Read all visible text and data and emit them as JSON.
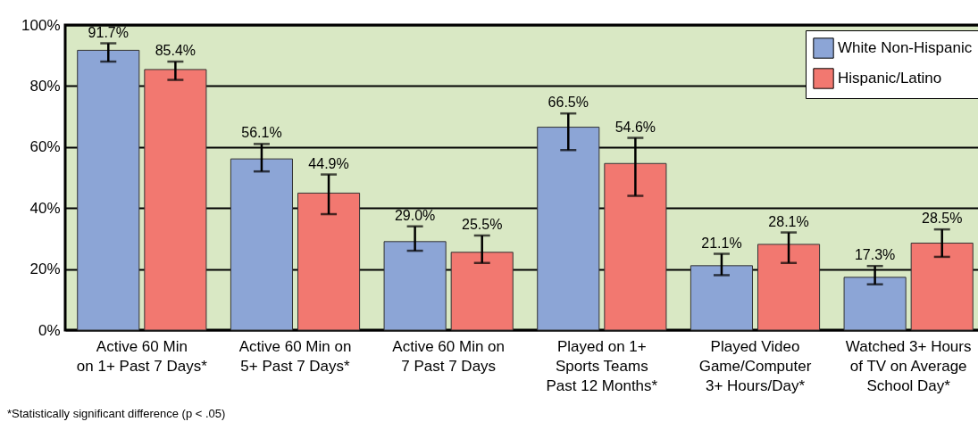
{
  "chart_data": {
    "type": "bar",
    "categories": [
      "Active 60 Min\non 1+ Past 7 Days*",
      "Active 60 Min on\n5+ Past 7 Days*",
      "Active 60 Min on\n7 Past 7 Days",
      "Played on 1+\nSports Teams\nPast 12 Months*",
      "Played Video\nGame/Computer\n3+  Hours/Day*",
      "Watched 3+ Hours\nof TV on Average\nSchool Day*"
    ],
    "series": [
      {
        "name": "White Non-Hispanic",
        "color": "#8ca5d6",
        "values": [
          91.7,
          56.1,
          29.0,
          66.5,
          21.1,
          17.3
        ],
        "value_labels": [
          "91.7%",
          "56.1%",
          "29.0%",
          "66.5%",
          "21.1%",
          "17.3%"
        ],
        "errors": [
          [
            88,
            94
          ],
          [
            52,
            61
          ],
          [
            26,
            34
          ],
          [
            59,
            71
          ],
          [
            18,
            25
          ],
          [
            15,
            21
          ]
        ]
      },
      {
        "name": "Hispanic/Latino",
        "color": "#f27870",
        "values": [
          85.4,
          44.9,
          25.5,
          54.6,
          28.1,
          28.5
        ],
        "value_labels": [
          "85.4%",
          "44.9%",
          "25.5%",
          "54.6%",
          "28.1%",
          "28.5%"
        ],
        "errors": [
          [
            82,
            88
          ],
          [
            38,
            51
          ],
          [
            22,
            31
          ],
          [
            44,
            63
          ],
          [
            22,
            32
          ],
          [
            24,
            33
          ]
        ]
      }
    ],
    "ylim": [
      0,
      100
    ],
    "yticks": [
      {
        "value": 0,
        "label": "0%"
      },
      {
        "value": 20,
        "label": "20%"
      },
      {
        "value": 40,
        "label": "40%"
      },
      {
        "value": 60,
        "label": "60%"
      },
      {
        "value": 80,
        "label": "80%"
      },
      {
        "value": 100,
        "label": "100%"
      }
    ],
    "grid": "y",
    "legend": "top right",
    "annotations": [
      "*Statistically significant difference (p < .05)"
    ]
  }
}
